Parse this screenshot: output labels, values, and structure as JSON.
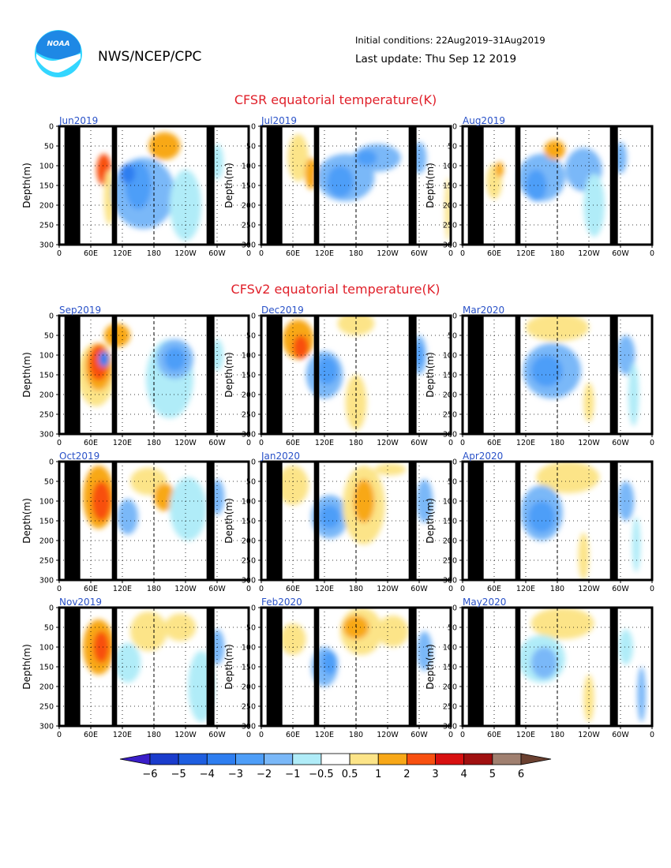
{
  "header": {
    "org": "NWS/NCEP/CPC",
    "logo_text": "NOAA",
    "initial_conditions": "Initial conditions: 22Aug2019–31Aug2019",
    "last_update": "Last update: Thu Sep 12 2019"
  },
  "colors": {
    "title": "#e0202a",
    "panel_label": "#2a52c8",
    "land": "#000000",
    "logo_blue": "#1e88e5",
    "logo_cyan": "#33d6ff"
  },
  "chart_data": {
    "type": "heatmap",
    "section_titles": [
      "CFSR equatorial temperature(K)",
      "CFSv2 equatorial temperature(K)"
    ],
    "ylabel": "Depth(m)",
    "y_range": [
      0,
      300
    ],
    "y_ticks": [
      "0",
      "50",
      "100",
      "150",
      "200",
      "250",
      "300"
    ],
    "x_range": [
      0,
      360
    ],
    "x_ticks": [
      "0",
      "60E",
      "120E",
      "180",
      "120W",
      "60W",
      "0"
    ],
    "grid": "dotted",
    "reference_longitude": 180,
    "panels": [
      {
        "label": "Jun2019",
        "section": 0
      },
      {
        "label": "Jul2019",
        "section": 0
      },
      {
        "label": "Aug2019",
        "section": 0
      },
      {
        "label": "Sep2019",
        "section": 1
      },
      {
        "label": "Dec2019",
        "section": 1
      },
      {
        "label": "Mar2020",
        "section": 1
      },
      {
        "label": "Oct2019",
        "section": 1
      },
      {
        "label": "Jan2020",
        "section": 1
      },
      {
        "label": "Apr2020",
        "section": 1
      },
      {
        "label": "Nov2019",
        "section": 1
      },
      {
        "label": "Feb2020",
        "section": 1
      },
      {
        "label": "May2020",
        "section": 1
      }
    ],
    "land_longitudes": [
      [
        10,
        40
      ],
      [
        100,
        110
      ],
      [
        280,
        295
      ]
    ],
    "colorbar": {
      "labels": [
        "−6",
        "−5",
        "−4",
        "−3",
        "−2",
        "−1",
        "−0.5",
        "0.5",
        "1",
        "2",
        "3",
        "4",
        "5",
        "6"
      ],
      "colors": [
        "#3a1ec8",
        "#1a3ccc",
        "#1e5ee0",
        "#2e7ef0",
        "#4e9ef8",
        "#7ab8f8",
        "#b0ecf8",
        "#ffffff",
        "#fce488",
        "#f8a818",
        "#f85010",
        "#d81010",
        "#a01010",
        "#a08070",
        "#6a4030"
      ]
    }
  }
}
